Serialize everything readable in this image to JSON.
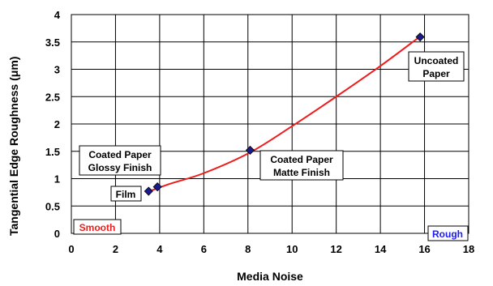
{
  "chart_data": {
    "type": "scatter",
    "xlabel": "Media Noise",
    "ylabel": "Tangential Edge Roughness (μm)",
    "xlim": [
      0,
      18
    ],
    "ylim": [
      0,
      4
    ],
    "xticks": [
      "0",
      "2",
      "4",
      "6",
      "8",
      "10",
      "12",
      "14",
      "16",
      "18"
    ],
    "yticks": [
      "0",
      "0.5",
      "1",
      "1.5",
      "2",
      "2.5",
      "3",
      "3.5",
      "4"
    ],
    "grid": true,
    "legend": "none",
    "marker_color": "#1a1a8c",
    "fit_color": "#ee1c1c",
    "points": [
      {
        "x": 3.5,
        "y": 0.77
      },
      {
        "x": 3.9,
        "y": 0.85
      },
      {
        "x": 8.1,
        "y": 1.52
      },
      {
        "x": 15.8,
        "y": 3.59
      }
    ],
    "fit_curve": [
      {
        "x": 3.4,
        "y": 0.75
      },
      {
        "x": 4.5,
        "y": 0.91
      },
      {
        "x": 6.0,
        "y": 1.1
      },
      {
        "x": 8.1,
        "y": 1.48
      },
      {
        "x": 10.0,
        "y": 1.96
      },
      {
        "x": 12.0,
        "y": 2.5
      },
      {
        "x": 14.0,
        "y": 3.06
      },
      {
        "x": 15.8,
        "y": 3.6
      }
    ],
    "annotations": [
      {
        "lines": [
          "Film"
        ]
      },
      {
        "lines": [
          "Coated Paper",
          "Glossy Finish"
        ]
      },
      {
        "lines": [
          "Coated Paper",
          "Matte Finish"
        ]
      },
      {
        "lines": [
          "Uncoated",
          "Paper"
        ]
      }
    ],
    "corner_labels": [
      {
        "text": "Smooth",
        "color": "#ee1c1c"
      },
      {
        "text": "Rough",
        "color": "#1a1aff"
      }
    ]
  }
}
